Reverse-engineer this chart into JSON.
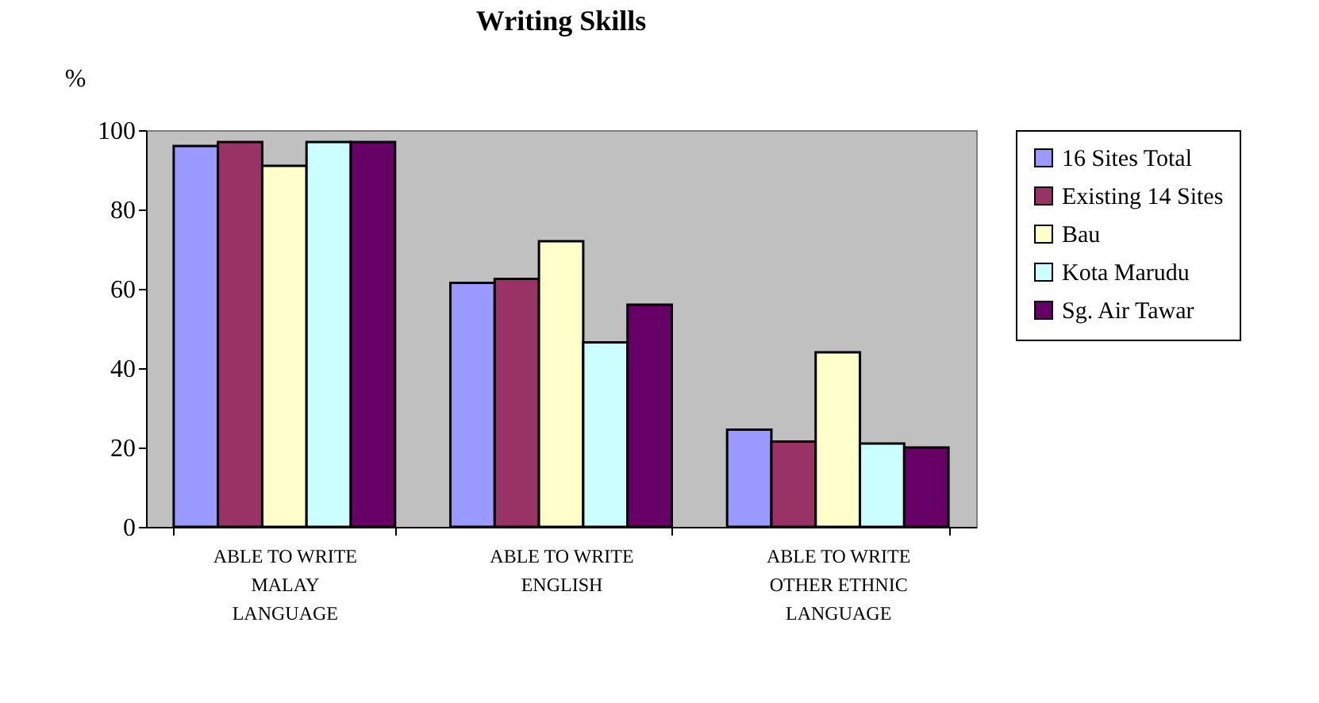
{
  "chart_data": {
    "type": "bar",
    "title": "Writing Skills",
    "ylabel": "%",
    "categories": [
      "ABLE TO WRITE\nMALAY\nLANGUAGE",
      "ABLE TO WRITE\nENGLISH",
      "ABLE TO WRITE\nOTHER ETHNIC\nLANGUAGE"
    ],
    "series": [
      {
        "name": "16 Sites Total",
        "color": "#9999ff",
        "values": [
          96,
          61.5,
          24.5
        ]
      },
      {
        "name": "Existing 14 Sites",
        "color": "#993366",
        "values": [
          97,
          62.5,
          21.5
        ]
      },
      {
        "name": "Bau",
        "color": "#ffffcc",
        "values": [
          91,
          72,
          44
        ]
      },
      {
        "name": "Kota Marudu",
        "color": "#ccffff",
        "values": [
          97,
          46.5,
          21
        ]
      },
      {
        "name": "Sg. Air Tawar",
        "color": "#660066",
        "values": [
          97,
          56,
          20
        ]
      }
    ],
    "ylim": [
      0,
      100
    ],
    "yticks": [
      0,
      20,
      40,
      60,
      80,
      100
    ],
    "grid": false,
    "legend": "right"
  }
}
